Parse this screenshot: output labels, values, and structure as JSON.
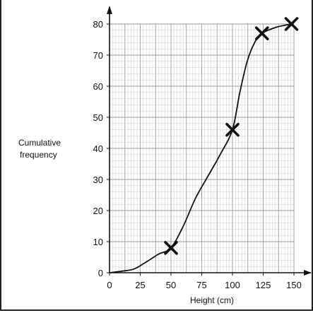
{
  "chart_data": {
    "type": "line",
    "title": "",
    "xlabel": "Height (cm)",
    "ylabel": [
      "Cumulative",
      "frequency"
    ],
    "xlim": [
      0,
      150
    ],
    "ylim": [
      0,
      80
    ],
    "x_ticks": [
      0,
      25,
      50,
      75,
      100,
      125,
      150
    ],
    "y_ticks": [
      0,
      10,
      20,
      30,
      40,
      50,
      60,
      70,
      80
    ],
    "grid": true,
    "curve_points": [
      {
        "x": 0,
        "y": 0
      },
      {
        "x": 10,
        "y": 0.5
      },
      {
        "x": 20,
        "y": 1.2
      },
      {
        "x": 30,
        "y": 3.5
      },
      {
        "x": 40,
        "y": 6
      },
      {
        "x": 50,
        "y": 8
      },
      {
        "x": 60,
        "y": 15
      },
      {
        "x": 70,
        "y": 24
      },
      {
        "x": 80,
        "y": 31
      },
      {
        "x": 90,
        "y": 38
      },
      {
        "x": 100,
        "y": 46
      },
      {
        "x": 106,
        "y": 58
      },
      {
        "x": 112,
        "y": 68
      },
      {
        "x": 118,
        "y": 74
      },
      {
        "x": 124,
        "y": 77
      },
      {
        "x": 136,
        "y": 79
      },
      {
        "x": 148,
        "y": 80
      }
    ],
    "marked_points": [
      {
        "x": 50,
        "y": 8
      },
      {
        "x": 100,
        "y": 46
      },
      {
        "x": 124,
        "y": 77
      },
      {
        "x": 148,
        "y": 80
      }
    ],
    "colors": {
      "grid_minor": "#cfcfcf",
      "grid_major": "#9a9a9a",
      "ink": "#111111"
    }
  }
}
